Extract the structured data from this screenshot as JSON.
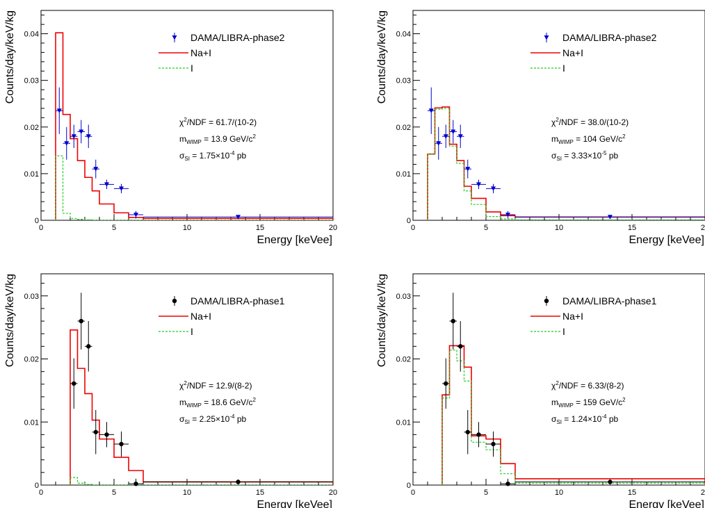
{
  "chart_data": [
    {
      "type": "line",
      "xlabel": "Energy [keVee]",
      "ylabel": "Counts/day/keV/kg",
      "xlim": [
        0,
        20
      ],
      "ylim": [
        0,
        0.045
      ],
      "xticks": [
        0,
        5,
        10,
        15,
        20
      ],
      "xtick_labels": [
        "0",
        "5",
        "10",
        "15",
        "20"
      ],
      "yticks": [
        0.01,
        0.02,
        0.03,
        0.04
      ],
      "ytick_labels": [
        "0.01",
        "0.02",
        "0.03",
        "0.04"
      ],
      "legend": [
        "DAMA/LIBRA-phase2",
        "Na+I",
        "I"
      ],
      "legend_position": "top-right",
      "annotation": {
        "chi2": "61.7/(10-2)",
        "mass": "13.9",
        "sigma": "1.75×10",
        "sigma_exp": "-4"
      },
      "data_points": {
        "color": "#0000cc",
        "marker": "triangle-down",
        "points": [
          {
            "x": 1.25,
            "y": 0.0235,
            "xerr": 0.25,
            "yerr": 0.005
          },
          {
            "x": 1.75,
            "y": 0.0165,
            "xerr": 0.25,
            "yerr": 0.0035
          },
          {
            "x": 2.25,
            "y": 0.018,
            "xerr": 0.25,
            "yerr": 0.0025
          },
          {
            "x": 2.75,
            "y": 0.019,
            "xerr": 0.25,
            "yerr": 0.0025
          },
          {
            "x": 3.25,
            "y": 0.018,
            "xerr": 0.25,
            "yerr": 0.0025
          },
          {
            "x": 3.75,
            "y": 0.011,
            "xerr": 0.25,
            "yerr": 0.002
          },
          {
            "x": 4.5,
            "y": 0.0077,
            "xerr": 0.5,
            "yerr": 0.001
          },
          {
            "x": 5.5,
            "y": 0.0068,
            "xerr": 0.5,
            "yerr": 0.001
          },
          {
            "x": 6.5,
            "y": 0.0012,
            "xerr": 0.5,
            "yerr": 0.0008
          },
          {
            "x": 13.5,
            "y": 0.0007,
            "xerr": 6.5,
            "yerr": 0.0002
          }
        ]
      },
      "series": [
        {
          "name": "Na+I",
          "color": "#ee0000",
          "dashed": false,
          "edges": [
            1,
            1.5,
            2,
            2.5,
            3,
            3.5,
            4,
            5,
            6,
            7,
            20
          ],
          "values": [
            0.0402,
            0.0227,
            0.0175,
            0.0128,
            0.0092,
            0.0063,
            0.0035,
            0.0016,
            0.0006,
            0.0004
          ]
        },
        {
          "name": "I",
          "color": "#22cc22",
          "dashed": true,
          "edges": [
            1,
            1.5,
            2,
            2.5,
            3,
            3.5,
            4,
            5,
            6,
            7,
            20
          ],
          "values": [
            0.0138,
            0.0015,
            0.0004,
            0.0002,
            0.0001,
            0,
            0,
            0,
            0,
            0
          ]
        }
      ]
    },
    {
      "type": "line",
      "xlabel": "Energy [keVee]",
      "ylabel": "Counts/day/keV/kg",
      "xlim": [
        0,
        20
      ],
      "ylim": [
        0,
        0.045
      ],
      "xticks": [
        0,
        5,
        10,
        15,
        20
      ],
      "xtick_labels": [
        "0",
        "5",
        "10",
        "15",
        "20"
      ],
      "yticks": [
        0.01,
        0.02,
        0.03,
        0.04
      ],
      "ytick_labels": [
        "0.01",
        "0.02",
        "0.03",
        "0.04"
      ],
      "legend": [
        "DAMA/LIBRA-phase2",
        "Na+I",
        "I"
      ],
      "legend_position": "top-right",
      "annotation": {
        "chi2": "38.0/(10-2)",
        "mass": "104",
        "sigma": "3.33×10",
        "sigma_exp": "-5"
      },
      "data_points": {
        "color": "#0000cc",
        "marker": "triangle-down",
        "points": [
          {
            "x": 1.25,
            "y": 0.0235,
            "xerr": 0.25,
            "yerr": 0.005
          },
          {
            "x": 1.75,
            "y": 0.0165,
            "xerr": 0.25,
            "yerr": 0.0035
          },
          {
            "x": 2.25,
            "y": 0.018,
            "xerr": 0.25,
            "yerr": 0.0025
          },
          {
            "x": 2.75,
            "y": 0.019,
            "xerr": 0.25,
            "yerr": 0.0025
          },
          {
            "x": 3.25,
            "y": 0.018,
            "xerr": 0.25,
            "yerr": 0.0025
          },
          {
            "x": 3.75,
            "y": 0.011,
            "xerr": 0.25,
            "yerr": 0.002
          },
          {
            "x": 4.5,
            "y": 0.0077,
            "xerr": 0.5,
            "yerr": 0.001
          },
          {
            "x": 5.5,
            "y": 0.0068,
            "xerr": 0.5,
            "yerr": 0.001
          },
          {
            "x": 6.5,
            "y": 0.0012,
            "xerr": 0.5,
            "yerr": 0.0008
          },
          {
            "x": 13.5,
            "y": 0.0007,
            "xerr": 6.5,
            "yerr": 0.0002
          }
        ]
      },
      "series": [
        {
          "name": "Na+I",
          "color": "#ee0000",
          "dashed": false,
          "edges": [
            1,
            1.5,
            2,
            2.5,
            3,
            3.5,
            4,
            5,
            6,
            7,
            20
          ],
          "values": [
            0.0142,
            0.0241,
            0.0243,
            0.0163,
            0.0128,
            0.0073,
            0.0047,
            0.0018,
            0.001,
            0.0007
          ]
        },
        {
          "name": "I",
          "color": "#22cc22",
          "dashed": true,
          "edges": [
            1,
            1.5,
            2,
            2.5,
            3,
            3.5,
            4,
            5,
            6,
            7,
            20
          ],
          "values": [
            0.0142,
            0.0238,
            0.024,
            0.0159,
            0.0122,
            0.0063,
            0.0034,
            0.0008,
            0.0003,
            0.0001
          ]
        }
      ]
    },
    {
      "type": "line",
      "xlabel": "Energy [keVee]",
      "ylabel": "Counts/day/keV/kg",
      "xlim": [
        0,
        20
      ],
      "ylim": [
        0,
        0.0335
      ],
      "xticks": [
        0,
        5,
        10,
        15,
        20
      ],
      "xtick_labels": [
        "0",
        "5",
        "10",
        "15",
        "20"
      ],
      "yticks": [
        0.01,
        0.02,
        0.03
      ],
      "ytick_labels": [
        "0.01",
        "0.02",
        "0.03"
      ],
      "legend": [
        "DAMA/LIBRA-phase1",
        "Na+I",
        "I"
      ],
      "legend_position": "top-right",
      "annotation": {
        "chi2": "12.9/(8-2)",
        "mass": "18.6",
        "sigma": "2.25×10",
        "sigma_exp": "-4"
      },
      "data_points": {
        "color": "#000000",
        "marker": "circle",
        "points": [
          {
            "x": 2.25,
            "y": 0.0161,
            "xerr": 0.25,
            "yerr": 0.004
          },
          {
            "x": 2.75,
            "y": 0.026,
            "xerr": 0.25,
            "yerr": 0.0045
          },
          {
            "x": 3.25,
            "y": 0.022,
            "xerr": 0.25,
            "yerr": 0.004
          },
          {
            "x": 3.75,
            "y": 0.0084,
            "xerr": 0.25,
            "yerr": 0.0035
          },
          {
            "x": 4.5,
            "y": 0.008,
            "xerr": 0.5,
            "yerr": 0.002
          },
          {
            "x": 5.5,
            "y": 0.0065,
            "xerr": 0.5,
            "yerr": 0.002
          },
          {
            "x": 6.5,
            "y": 0.0002,
            "xerr": 0.5,
            "yerr": 0.0008
          },
          {
            "x": 13.5,
            "y": 0.0005,
            "xerr": 6.5,
            "yerr": 0.0004
          }
        ]
      },
      "series": [
        {
          "name": "Na+I",
          "color": "#ee0000",
          "dashed": false,
          "edges": [
            2,
            2.5,
            3,
            3.5,
            4,
            5,
            6,
            7,
            20
          ],
          "values": [
            0.0246,
            0.0185,
            0.0145,
            0.0103,
            0.0073,
            0.0044,
            0.0023,
            0.0005
          ]
        },
        {
          "name": "I",
          "color": "#22cc22",
          "dashed": true,
          "edges": [
            2,
            2.5,
            3,
            3.5,
            4,
            5,
            6,
            7,
            20
          ],
          "values": [
            0.0012,
            0.0003,
            0.0001,
            0,
            0,
            0,
            0,
            0
          ]
        }
      ]
    },
    {
      "type": "line",
      "xlabel": "Energy [keVee]",
      "ylabel": "Counts/day/keV/kg",
      "xlim": [
        0,
        20
      ],
      "ylim": [
        0,
        0.0335
      ],
      "xticks": [
        0,
        5,
        10,
        15,
        20
      ],
      "xtick_labels": [
        "0",
        "5",
        "10",
        "15",
        "20"
      ],
      "yticks": [
        0.01,
        0.02,
        0.03
      ],
      "ytick_labels": [
        "0.01",
        "0.02",
        "0.03"
      ],
      "legend": [
        "DAMA/LIBRA-phase1",
        "Na+I",
        "I"
      ],
      "legend_position": "top-right",
      "annotation": {
        "chi2": "6.33/(8-2)",
        "mass": "159",
        "sigma": "1.24×10",
        "sigma_exp": "-4"
      },
      "data_points": {
        "color": "#000000",
        "marker": "circle",
        "points": [
          {
            "x": 2.25,
            "y": 0.0161,
            "xerr": 0.25,
            "yerr": 0.004
          },
          {
            "x": 2.75,
            "y": 0.026,
            "xerr": 0.25,
            "yerr": 0.0045
          },
          {
            "x": 3.25,
            "y": 0.022,
            "xerr": 0.25,
            "yerr": 0.004
          },
          {
            "x": 3.75,
            "y": 0.0084,
            "xerr": 0.25,
            "yerr": 0.0035
          },
          {
            "x": 4.5,
            "y": 0.008,
            "xerr": 0.5,
            "yerr": 0.002
          },
          {
            "x": 5.5,
            "y": 0.0065,
            "xerr": 0.5,
            "yerr": 0.002
          },
          {
            "x": 6.5,
            "y": 0.0002,
            "xerr": 0.5,
            "yerr": 0.0008
          },
          {
            "x": 13.5,
            "y": 0.0005,
            "xerr": 6.5,
            "yerr": 0.0004
          }
        ]
      },
      "series": [
        {
          "name": "Na+I",
          "color": "#ee0000",
          "dashed": false,
          "edges": [
            2,
            2.5,
            3,
            3.5,
            4,
            5,
            6,
            7,
            20
          ],
          "values": [
            0.0143,
            0.0221,
            0.0221,
            0.0187,
            0.0078,
            0.0073,
            0.0034,
            0.001
          ]
        },
        {
          "name": "I",
          "color": "#22cc22",
          "dashed": true,
          "edges": [
            2,
            2.5,
            3,
            3.5,
            4,
            5,
            6,
            7,
            20
          ],
          "values": [
            0.0138,
            0.0214,
            0.0197,
            0.0165,
            0.0068,
            0.0056,
            0.0018,
            0.0003
          ]
        }
      ]
    }
  ]
}
